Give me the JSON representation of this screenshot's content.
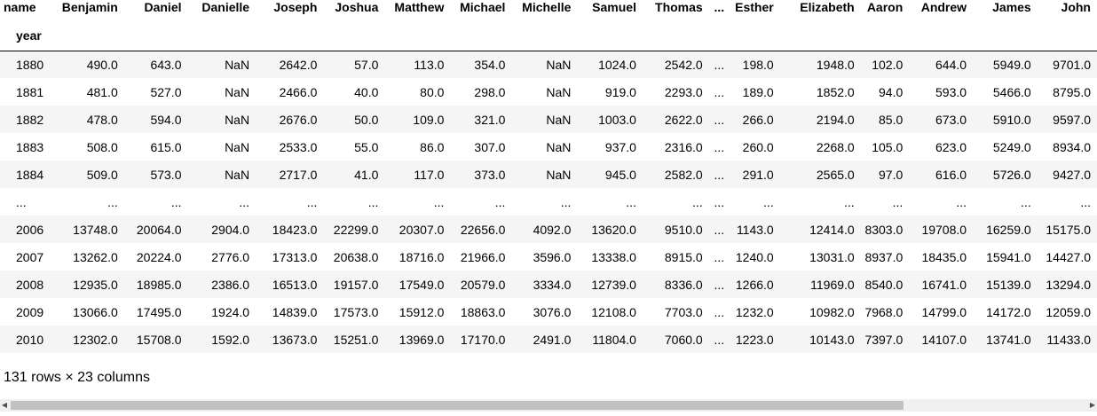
{
  "table": {
    "columns_label": "name",
    "index_label": "year",
    "columns": [
      "Benjamin",
      "Daniel",
      "Danielle",
      "Joseph",
      "Joshua",
      "Matthew",
      "Michael",
      "Michelle",
      "Samuel",
      "Thomas",
      "...",
      "Esther",
      "Elizabeth",
      "Aaron",
      "Andrew",
      "James",
      "John"
    ],
    "rows": [
      {
        "index": "1880",
        "cells": [
          "490.0",
          "643.0",
          "NaN",
          "2642.0",
          "57.0",
          "113.0",
          "354.0",
          "NaN",
          "1024.0",
          "2542.0",
          "...",
          "198.0",
          "1948.0",
          "102.0",
          "644.0",
          "5949.0",
          "9701.0"
        ]
      },
      {
        "index": "1881",
        "cells": [
          "481.0",
          "527.0",
          "NaN",
          "2466.0",
          "40.0",
          "80.0",
          "298.0",
          "NaN",
          "919.0",
          "2293.0",
          "...",
          "189.0",
          "1852.0",
          "94.0",
          "593.0",
          "5466.0",
          "8795.0"
        ]
      },
      {
        "index": "1882",
        "cells": [
          "478.0",
          "594.0",
          "NaN",
          "2676.0",
          "50.0",
          "109.0",
          "321.0",
          "NaN",
          "1003.0",
          "2622.0",
          "...",
          "266.0",
          "2194.0",
          "85.0",
          "673.0",
          "5910.0",
          "9597.0"
        ]
      },
      {
        "index": "1883",
        "cells": [
          "508.0",
          "615.0",
          "NaN",
          "2533.0",
          "55.0",
          "86.0",
          "307.0",
          "NaN",
          "937.0",
          "2316.0",
          "...",
          "260.0",
          "2268.0",
          "105.0",
          "623.0",
          "5249.0",
          "8934.0"
        ]
      },
      {
        "index": "1884",
        "cells": [
          "509.0",
          "573.0",
          "NaN",
          "2717.0",
          "41.0",
          "117.0",
          "373.0",
          "NaN",
          "945.0",
          "2582.0",
          "...",
          "291.0",
          "2565.0",
          "97.0",
          "616.0",
          "5726.0",
          "9427.0"
        ]
      },
      {
        "index": "...",
        "cells": [
          "...",
          "...",
          "...",
          "...",
          "...",
          "...",
          "...",
          "...",
          "...",
          "...",
          "...",
          "...",
          "...",
          "...",
          "...",
          "...",
          "..."
        ]
      },
      {
        "index": "2006",
        "cells": [
          "13748.0",
          "20064.0",
          "2904.0",
          "18423.0",
          "22299.0",
          "20307.0",
          "22656.0",
          "4092.0",
          "13620.0",
          "9510.0",
          "...",
          "1143.0",
          "12414.0",
          "8303.0",
          "19708.0",
          "16259.0",
          "15175.0"
        ]
      },
      {
        "index": "2007",
        "cells": [
          "13262.0",
          "20224.0",
          "2776.0",
          "17313.0",
          "20638.0",
          "18716.0",
          "21966.0",
          "3596.0",
          "13338.0",
          "8915.0",
          "...",
          "1240.0",
          "13031.0",
          "8937.0",
          "18435.0",
          "15941.0",
          "14427.0"
        ]
      },
      {
        "index": "2008",
        "cells": [
          "12935.0",
          "18985.0",
          "2386.0",
          "16513.0",
          "19157.0",
          "17549.0",
          "20579.0",
          "3334.0",
          "12739.0",
          "8336.0",
          "...",
          "1266.0",
          "11969.0",
          "8540.0",
          "16741.0",
          "15139.0",
          "13294.0"
        ]
      },
      {
        "index": "2009",
        "cells": [
          "13066.0",
          "17495.0",
          "1924.0",
          "14839.0",
          "17573.0",
          "15912.0",
          "18863.0",
          "3076.0",
          "12108.0",
          "7703.0",
          "...",
          "1232.0",
          "10982.0",
          "7968.0",
          "14799.0",
          "14172.0",
          "12059.0"
        ]
      },
      {
        "index": "2010",
        "cells": [
          "12302.0",
          "15708.0",
          "1592.0",
          "13673.0",
          "15251.0",
          "13969.0",
          "17170.0",
          "2491.0",
          "11804.0",
          "7060.0",
          "...",
          "1223.0",
          "10143.0",
          "7397.0",
          "14107.0",
          "13741.0",
          "11433.0"
        ]
      }
    ]
  },
  "shape_note": "131 rows × 23 columns",
  "scrollbar": {
    "left_arrow": "◀",
    "right_arrow": "▶"
  }
}
